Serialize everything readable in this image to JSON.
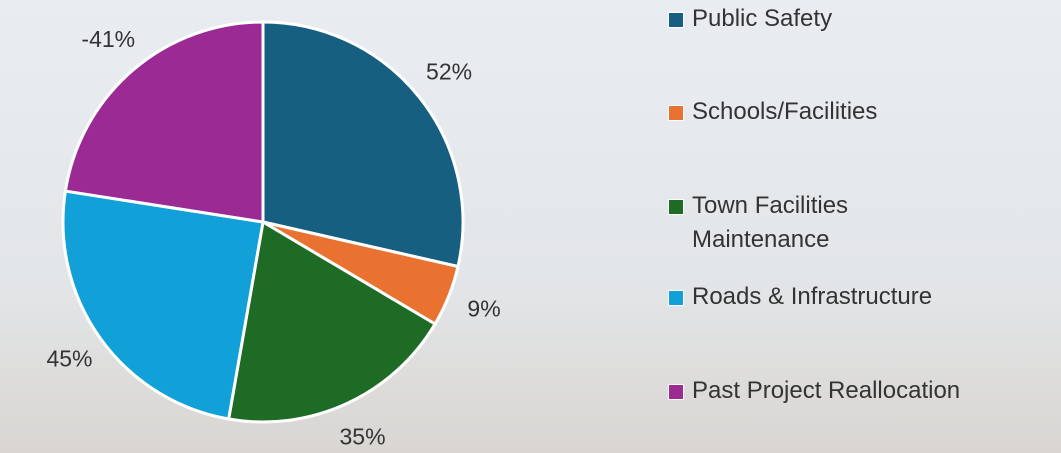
{
  "chart_data": {
    "type": "pie",
    "categories": [
      "Public Safety",
      "Schools/Facilities",
      "Town Facilities Maintenance",
      "Roads & Infrastructure",
      "Past Project Reallocation"
    ],
    "values": [
      52,
      9,
      35,
      45,
      -41
    ],
    "value_labels": [
      "52%",
      "9%",
      "35%",
      "45%",
      "-41%"
    ],
    "colors": [
      "#175f80",
      "#e97231",
      "#1e6b25",
      "#12a0d8",
      "#9c2a95"
    ],
    "legend": "right"
  }
}
